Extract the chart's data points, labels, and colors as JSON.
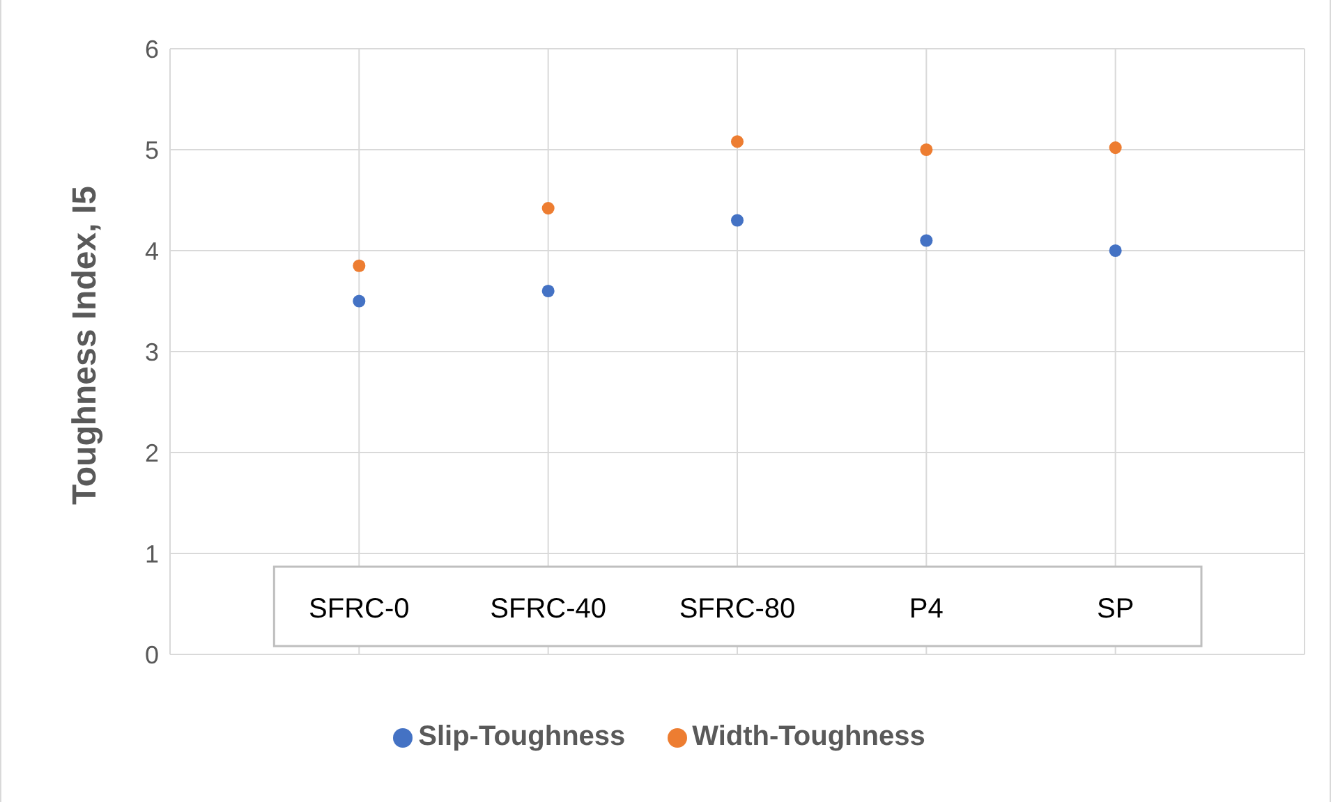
{
  "chart_data": {
    "type": "scatter",
    "ylabel": "Toughness Index, I5",
    "categories": [
      "SFRC-0",
      "SFRC-40",
      "SFRC-80",
      "P4",
      "SP"
    ],
    "series": [
      {
        "name": "Slip-Toughness",
        "color": "#4472c4",
        "values": [
          3.5,
          3.6,
          4.3,
          4.1,
          4.0
        ]
      },
      {
        "name": "Width-Toughness",
        "color": "#ed7d31",
        "values": [
          3.85,
          4.42,
          5.08,
          5.0,
          5.02
        ]
      }
    ],
    "ylim": [
      0,
      6
    ],
    "yticks": [
      0,
      1,
      2,
      3,
      4,
      5,
      6
    ],
    "grid": true,
    "legend": "bottom",
    "marker": "circle"
  }
}
